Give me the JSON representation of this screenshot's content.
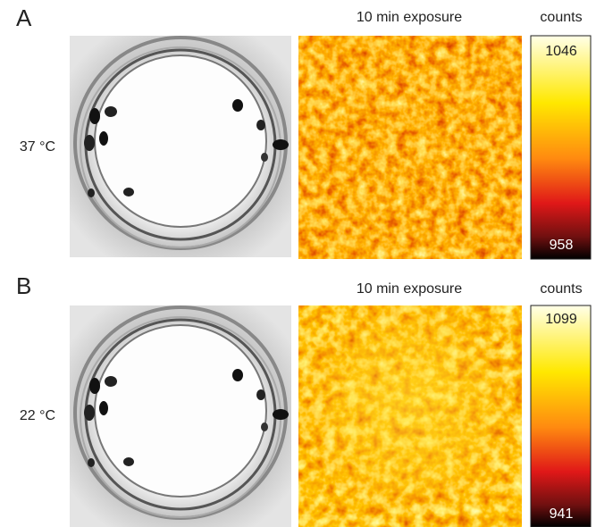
{
  "panels": [
    {
      "label": "A",
      "temperature": "37 °C",
      "exposure": "10 min exposure",
      "colorbar": {
        "title": "counts",
        "max": "1046",
        "min": "958"
      }
    },
    {
      "label": "B",
      "temperature": "22 °C",
      "exposure": "10 min exposure",
      "colorbar": {
        "title": "counts",
        "max": "1099",
        "min": "941"
      }
    }
  ]
}
